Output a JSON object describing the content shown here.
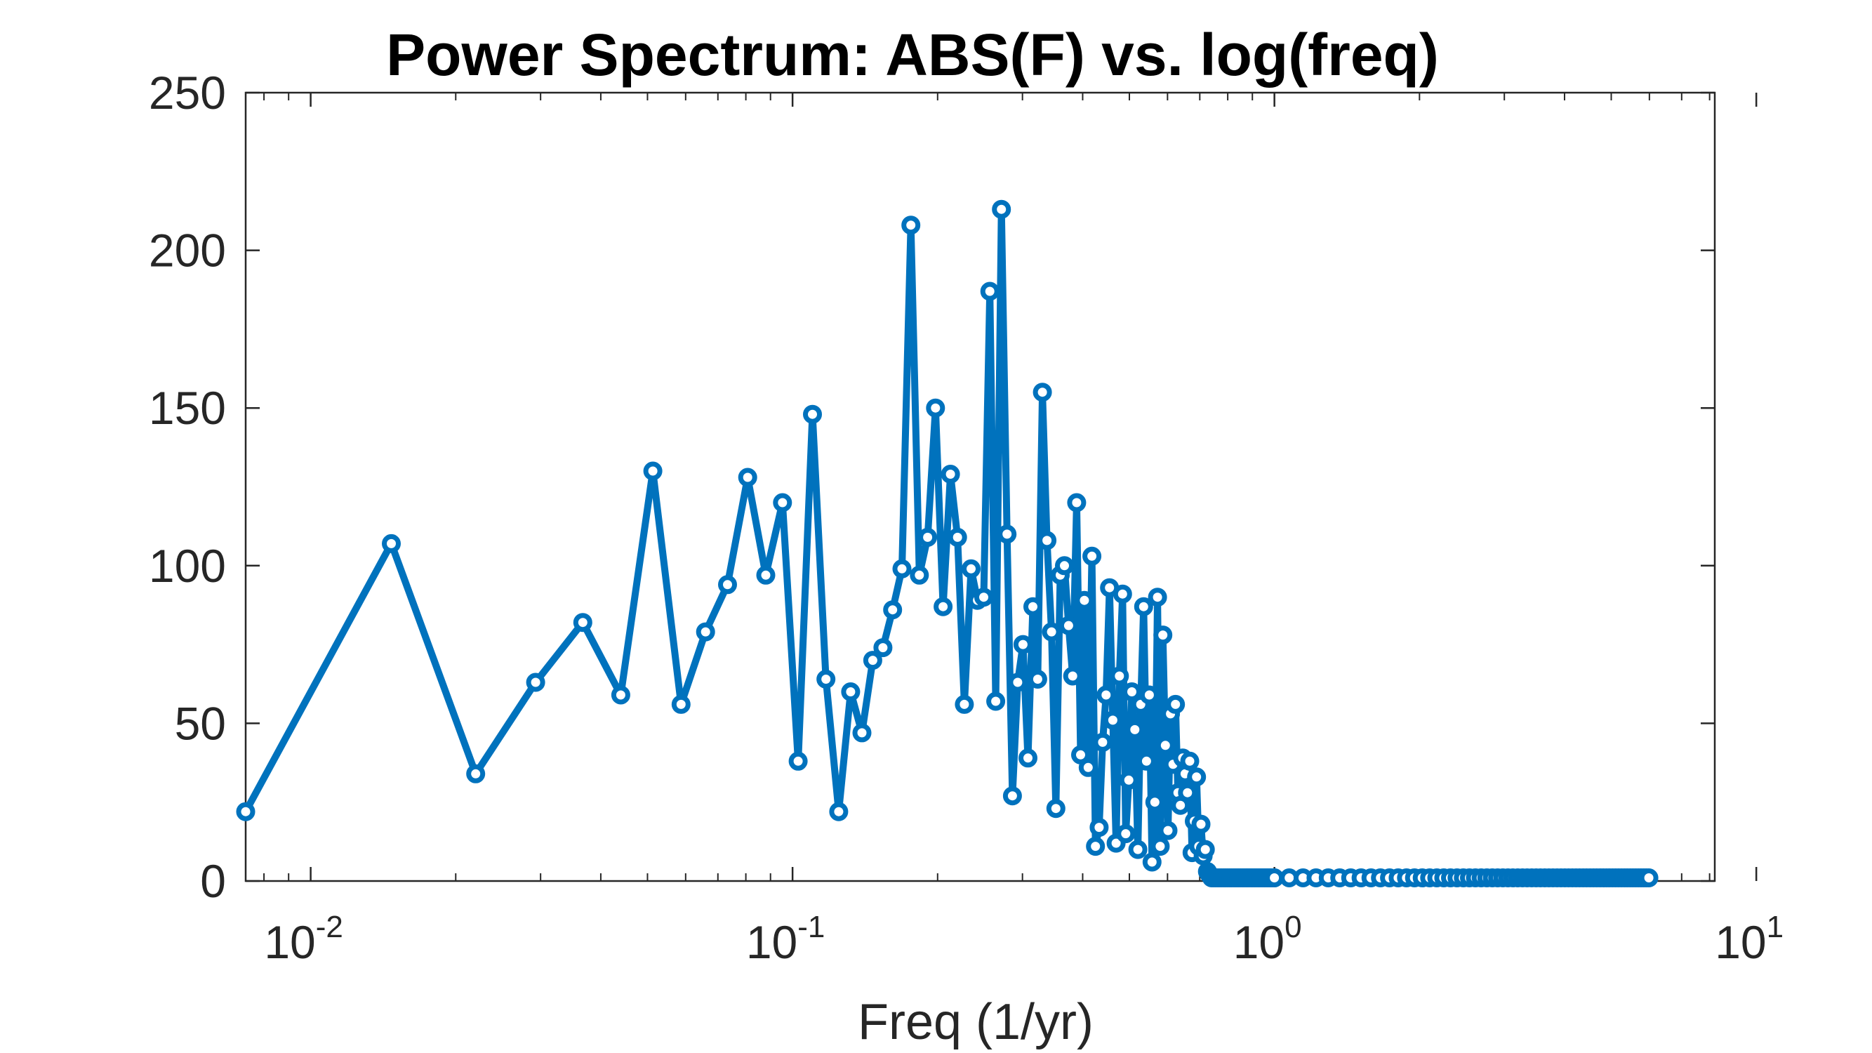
{
  "chart_data": {
    "type": "line",
    "title": "Power Spectrum: ABS(F) vs. log(freq)",
    "xlabel": "Freq (1/yr)",
    "ylabel": "",
    "xscale": "log",
    "xlim": [
      0.00733,
      8.2
    ],
    "ylim": [
      0,
      250
    ],
    "grid": false,
    "box": true,
    "line_color": "#0072BD",
    "marker": "circle",
    "yticks": [
      0,
      50,
      100,
      150,
      200,
      250
    ],
    "ytick_labels": [
      "0",
      "50",
      "100",
      "150",
      "200",
      "250"
    ],
    "xticks": [
      {
        "base": "10",
        "exp": "-2"
      },
      {
        "base": "10",
        "exp": "-1"
      },
      {
        "base": "10",
        "exp": "0"
      },
      {
        "base": "10",
        "exp": "1"
      }
    ],
    "series": [
      {
        "x": [
          0.00733,
          0.0147,
          0.022,
          0.0293,
          0.0367,
          0.044,
          0.0513,
          0.0587,
          0.066,
          0.0733,
          0.0807,
          0.088,
          0.0953,
          0.1027,
          0.11,
          0.1173,
          0.1247,
          0.132,
          0.1393,
          0.1467,
          0.154,
          0.1613,
          0.1687,
          0.176,
          0.1833,
          0.1907,
          0.198,
          0.2053,
          0.2127,
          0.22,
          0.2273,
          0.2347,
          0.242,
          0.2493,
          0.2567,
          0.264,
          0.2713,
          0.2787,
          0.286,
          0.2933,
          0.3007,
          0.308,
          0.3153,
          0.3227,
          0.33,
          0.3373,
          0.3447,
          0.352,
          0.3593,
          0.3667,
          0.374,
          0.3813,
          0.3887,
          0.396,
          0.4033,
          0.4107,
          0.418,
          0.4253,
          0.4327,
          0.44,
          0.4473,
          0.4547,
          0.462,
          0.4693,
          0.4767,
          0.484,
          0.4913,
          0.4987,
          0.506,
          0.5133,
          0.5207,
          0.528,
          0.5353,
          0.5427,
          0.55,
          0.5573,
          0.5647,
          0.572,
          0.5793,
          0.5867,
          0.594,
          0.6013,
          0.6087,
          0.616,
          0.6233,
          0.6307,
          0.638,
          0.6453,
          0.6527,
          0.66,
          0.6673,
          0.6747,
          0.682,
          0.6893,
          0.6967,
          0.704,
          0.7113,
          0.7187,
          0.726,
          0.7333,
          0.7407,
          0.748,
          0.7553,
          0.7627,
          0.77,
          0.7773,
          0.7847,
          0.792,
          0.7993,
          0.8067,
          0.814,
          0.8213,
          0.8287,
          0.836,
          0.8433,
          0.8507,
          0.858,
          0.8653,
          0.8727,
          0.88,
          0.8873,
          0.8947,
          0.902,
          0.9093,
          0.9167,
          0.924,
          0.9313,
          0.9387,
          0.946,
          0.9533,
          0.9607,
          0.968,
          0.9753,
          0.9827,
          0.99,
          1.0
        ],
        "y": [
          22,
          107,
          34,
          63,
          82,
          59,
          130,
          56,
          79,
          94,
          128,
          97,
          120,
          38,
          148,
          64,
          22,
          60,
          47,
          70,
          74,
          86,
          99,
          208,
          97,
          109,
          150,
          87,
          129,
          109,
          56,
          99,
          89,
          90,
          187,
          57,
          213,
          110,
          27,
          63,
          75,
          39,
          87,
          64,
          155,
          108,
          79,
          23,
          97,
          100,
          81,
          65,
          120,
          40,
          89,
          36,
          103,
          11,
          17,
          44,
          59,
          93,
          51,
          12,
          65,
          91,
          15,
          32,
          60,
          48,
          10,
          56,
          87,
          38,
          59,
          6,
          25,
          90,
          11,
          78,
          43,
          16,
          53,
          37,
          56,
          28,
          24,
          39,
          34,
          28,
          38,
          9,
          19,
          33,
          11,
          18,
          8,
          10,
          3,
          2,
          1,
          1,
          1,
          1,
          1,
          1,
          1,
          1,
          1,
          1,
          1,
          1,
          1,
          1,
          1,
          1,
          1,
          1,
          1,
          1,
          1,
          1,
          1,
          1,
          1,
          1,
          1,
          1,
          1,
          1,
          1,
          1,
          1,
          1,
          1,
          1
        ]
      }
    ]
  }
}
